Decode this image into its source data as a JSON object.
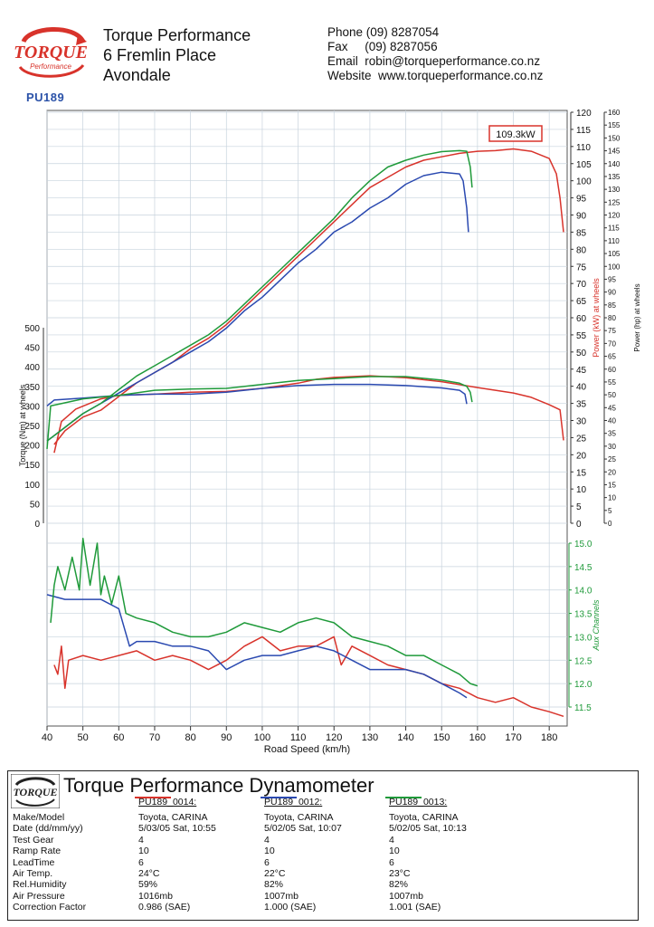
{
  "header": {
    "company": "Torque Performance",
    "address_line1": "6 Fremlin Place",
    "address_line2": "Avondale",
    "phone": "Phone (09) 8287054",
    "fax": "Fax     (09) 8287056",
    "email": "Email  robin@torqueperformance.co.nz",
    "website": "Website  www.torqueperformance.co.nz",
    "logo_text": "TORQUE",
    "logo_sub": "Performance",
    "vehicle_id": "PU189"
  },
  "colors": {
    "run_0014": "#d8332b",
    "run_0012": "#2a49b0",
    "run_0013": "#1f9a3a",
    "power_axis": "#d8332b",
    "aux_axis": "#1f9a3a",
    "grid": "#c7d3dd"
  },
  "chart_data": {
    "type": "line",
    "xlabel": "Road Speed (km/h)",
    "xlim": [
      40,
      185
    ],
    "x_ticks": [
      40,
      50,
      60,
      70,
      80,
      90,
      100,
      110,
      120,
      130,
      140,
      150,
      160,
      170,
      180
    ],
    "axes": {
      "torque": {
        "label": "Torque (Nm) at wheels",
        "range": [
          0,
          500
        ],
        "ticks": [
          0,
          50,
          100,
          150,
          200,
          250,
          300,
          350,
          400,
          450,
          500
        ]
      },
      "power_kw": {
        "label": "Power (kW) at wheels",
        "range": [
          0,
          120
        ],
        "ticks": [
          0,
          5,
          10,
          15,
          20,
          25,
          30,
          35,
          40,
          45,
          50,
          55,
          60,
          65,
          70,
          75,
          80,
          85,
          90,
          95,
          100,
          105,
          110,
          115,
          120
        ]
      },
      "power_hp": {
        "label": "Power (hp) at wheels",
        "range": [
          0,
          160
        ],
        "ticks": [
          0,
          5,
          10,
          15,
          20,
          25,
          30,
          35,
          40,
          45,
          50,
          55,
          60,
          65,
          70,
          75,
          80,
          85,
          90,
          95,
          100,
          105,
          110,
          115,
          120,
          125,
          130,
          135,
          140,
          145,
          150,
          155,
          160
        ]
      },
      "aux": {
        "label": "Aux Channels",
        "range": [
          11.5,
          15.0
        ],
        "ticks": [
          11.5,
          12.0,
          12.5,
          13.0,
          13.5,
          14.0,
          14.5,
          15.0
        ]
      }
    },
    "peak_annotation": "109.3kW",
    "series": [
      {
        "name": "PU189_0014",
        "color": "#d8332b",
        "power": [
          [
            42,
            23
          ],
          [
            45,
            27
          ],
          [
            50,
            31
          ],
          [
            55,
            33
          ],
          [
            60,
            37
          ],
          [
            65,
            41
          ],
          [
            70,
            44
          ],
          [
            75,
            47
          ],
          [
            80,
            51
          ],
          [
            85,
            54
          ],
          [
            90,
            58
          ],
          [
            95,
            63
          ],
          [
            100,
            68
          ],
          [
            105,
            73
          ],
          [
            110,
            78
          ],
          [
            115,
            83
          ],
          [
            120,
            88
          ],
          [
            125,
            93
          ],
          [
            130,
            98
          ],
          [
            135,
            101
          ],
          [
            140,
            104
          ],
          [
            145,
            106
          ],
          [
            150,
            107
          ],
          [
            155,
            108
          ],
          [
            160,
            108.6
          ],
          [
            165,
            108.8
          ],
          [
            170,
            109.3
          ],
          [
            175,
            108.6
          ],
          [
            180,
            106.5
          ],
          [
            182,
            102
          ],
          [
            183,
            95
          ],
          [
            184,
            85
          ]
        ],
        "torque": [
          [
            42,
            180
          ],
          [
            44,
            260
          ],
          [
            48,
            292
          ],
          [
            55,
            318
          ],
          [
            60,
            327
          ],
          [
            70,
            330
          ],
          [
            80,
            335
          ],
          [
            90,
            337
          ],
          [
            100,
            345
          ],
          [
            110,
            358
          ],
          [
            115,
            368
          ],
          [
            120,
            373
          ],
          [
            130,
            377
          ],
          [
            140,
            372
          ],
          [
            150,
            362
          ],
          [
            160,
            347
          ],
          [
            170,
            333
          ],
          [
            175,
            322
          ],
          [
            180,
            303
          ],
          [
            183,
            290
          ],
          [
            184,
            212
          ]
        ],
        "aux": [
          [
            42,
            12.4
          ],
          [
            43,
            12.2
          ],
          [
            44,
            12.8
          ],
          [
            45,
            11.9
          ],
          [
            46,
            12.5
          ],
          [
            50,
            12.6
          ],
          [
            55,
            12.5
          ],
          [
            60,
            12.6
          ],
          [
            65,
            12.7
          ],
          [
            70,
            12.5
          ],
          [
            75,
            12.6
          ],
          [
            80,
            12.5
          ],
          [
            85,
            12.3
          ],
          [
            90,
            12.5
          ],
          [
            95,
            12.8
          ],
          [
            100,
            13.0
          ],
          [
            105,
            12.7
          ],
          [
            110,
            12.8
          ],
          [
            115,
            12.8
          ],
          [
            120,
            13.0
          ],
          [
            122,
            12.4
          ],
          [
            125,
            12.8
          ],
          [
            130,
            12.6
          ],
          [
            135,
            12.4
          ],
          [
            140,
            12.3
          ],
          [
            145,
            12.2
          ],
          [
            150,
            12.0
          ],
          [
            155,
            11.9
          ],
          [
            160,
            11.7
          ],
          [
            165,
            11.6
          ],
          [
            170,
            11.7
          ],
          [
            175,
            11.5
          ],
          [
            180,
            11.4
          ],
          [
            184,
            11.3
          ]
        ]
      },
      {
        "name": "PU189_0012",
        "color": "#2a49b0",
        "power": [
          [
            40,
            24
          ],
          [
            45,
            28
          ],
          [
            50,
            32
          ],
          [
            55,
            35
          ],
          [
            60,
            38
          ],
          [
            65,
            41
          ],
          [
            70,
            44
          ],
          [
            75,
            47
          ],
          [
            80,
            50
          ],
          [
            85,
            53
          ],
          [
            90,
            57
          ],
          [
            95,
            62
          ],
          [
            100,
            66
          ],
          [
            105,
            71
          ],
          [
            110,
            76
          ],
          [
            115,
            80
          ],
          [
            120,
            85
          ],
          [
            125,
            88
          ],
          [
            130,
            92
          ],
          [
            135,
            95
          ],
          [
            140,
            99
          ],
          [
            145,
            101.5
          ],
          [
            150,
            102.5
          ],
          [
            155,
            102
          ],
          [
            156,
            100
          ],
          [
            157,
            92
          ],
          [
            157.5,
            85
          ]
        ],
        "torque": [
          [
            40,
            300
          ],
          [
            42,
            315
          ],
          [
            50,
            320
          ],
          [
            60,
            327
          ],
          [
            70,
            330
          ],
          [
            80,
            330
          ],
          [
            90,
            335
          ],
          [
            100,
            345
          ],
          [
            110,
            352
          ],
          [
            120,
            355
          ],
          [
            130,
            355
          ],
          [
            140,
            352
          ],
          [
            150,
            346
          ],
          [
            155,
            340
          ],
          [
            156.5,
            330
          ],
          [
            157,
            305
          ]
        ],
        "aux": [
          [
            40,
            13.9
          ],
          [
            45,
            13.8
          ],
          [
            50,
            13.8
          ],
          [
            55,
            13.8
          ],
          [
            60,
            13.6
          ],
          [
            63,
            12.8
          ],
          [
            65,
            12.9
          ],
          [
            70,
            12.9
          ],
          [
            75,
            12.8
          ],
          [
            80,
            12.8
          ],
          [
            85,
            12.7
          ],
          [
            90,
            12.3
          ],
          [
            95,
            12.5
          ],
          [
            100,
            12.6
          ],
          [
            105,
            12.6
          ],
          [
            110,
            12.7
          ],
          [
            115,
            12.8
          ],
          [
            120,
            12.7
          ],
          [
            125,
            12.5
          ],
          [
            130,
            12.3
          ],
          [
            135,
            12.3
          ],
          [
            140,
            12.3
          ],
          [
            145,
            12.2
          ],
          [
            150,
            12.0
          ],
          [
            155,
            11.8
          ],
          [
            157,
            11.7
          ]
        ]
      },
      {
        "name": "PU189_0013",
        "color": "#1f9a3a",
        "power": [
          [
            40,
            24
          ],
          [
            45,
            28
          ],
          [
            50,
            32
          ],
          [
            55,
            35
          ],
          [
            60,
            39
          ],
          [
            65,
            43
          ],
          [
            70,
            46
          ],
          [
            75,
            49
          ],
          [
            80,
            52
          ],
          [
            85,
            55
          ],
          [
            90,
            59
          ],
          [
            95,
            64
          ],
          [
            100,
            69
          ],
          [
            105,
            74
          ],
          [
            110,
            79
          ],
          [
            115,
            84
          ],
          [
            120,
            89
          ],
          [
            125,
            95
          ],
          [
            130,
            100
          ],
          [
            135,
            104
          ],
          [
            140,
            106
          ],
          [
            145,
            107.5
          ],
          [
            150,
            108.5
          ],
          [
            155,
            108.8
          ],
          [
            157,
            108.6
          ],
          [
            158,
            104
          ],
          [
            158.5,
            98
          ]
        ],
        "torque": [
          [
            40,
            190
          ],
          [
            41,
            300
          ],
          [
            50,
            318
          ],
          [
            60,
            327
          ],
          [
            70,
            340
          ],
          [
            80,
            343
          ],
          [
            90,
            345
          ],
          [
            100,
            355
          ],
          [
            110,
            365
          ],
          [
            120,
            370
          ],
          [
            130,
            375
          ],
          [
            140,
            375
          ],
          [
            150,
            366
          ],
          [
            155,
            358
          ],
          [
            157,
            350
          ],
          [
            158,
            335
          ],
          [
            158.5,
            310
          ]
        ],
        "aux": [
          [
            41,
            13.3
          ],
          [
            42,
            14.1
          ],
          [
            43,
            14.5
          ],
          [
            45,
            14.0
          ],
          [
            47,
            14.7
          ],
          [
            49,
            14.0
          ],
          [
            50,
            15.1
          ],
          [
            52,
            14.1
          ],
          [
            54,
            15.0
          ],
          [
            55,
            13.9
          ],
          [
            56,
            14.3
          ],
          [
            58,
            13.7
          ],
          [
            60,
            14.3
          ],
          [
            62,
            13.5
          ],
          [
            65,
            13.4
          ],
          [
            70,
            13.3
          ],
          [
            75,
            13.1
          ],
          [
            80,
            13.0
          ],
          [
            85,
            13.0
          ],
          [
            90,
            13.1
          ],
          [
            95,
            13.3
          ],
          [
            100,
            13.2
          ],
          [
            105,
            13.1
          ],
          [
            110,
            13.3
          ],
          [
            115,
            13.4
          ],
          [
            120,
            13.3
          ],
          [
            125,
            13.0
          ],
          [
            130,
            12.9
          ],
          [
            135,
            12.8
          ],
          [
            140,
            12.6
          ],
          [
            145,
            12.6
          ],
          [
            150,
            12.4
          ],
          [
            155,
            12.2
          ],
          [
            158,
            12.0
          ],
          [
            160,
            11.95
          ]
        ]
      }
    ]
  },
  "table": {
    "title": "Torque Performance Dynamometer",
    "logo_text": "TORQUE",
    "row_labels": [
      "Make/Model",
      "Date (dd/mm/yy)",
      "Test Gear",
      "Ramp Rate",
      "LeadTime",
      "Air Temp.",
      "Rel.Humidity",
      "Air Pressure",
      "Correction Factor"
    ],
    "runs": [
      {
        "name": "PU189_0014:",
        "values": [
          "Toyota, CARINA",
          "5/03/05 Sat, 10:55",
          "4",
          "10",
          "6",
          "24°C",
          "59%",
          "1016mb",
          "0.986 (SAE)"
        ]
      },
      {
        "name": "PU189_0012:",
        "values": [
          "Toyota, CARINA",
          "5/02/05 Sat, 10:07",
          "4",
          "10",
          "6",
          "22°C",
          "82%",
          "1007mb",
          "1.000 (SAE)"
        ]
      },
      {
        "name": "PU189_0013:",
        "values": [
          "Toyota, CARINA",
          "5/02/05 Sat, 10:13",
          "4",
          "10",
          "6",
          "23°C",
          "82%",
          "1007mb",
          "1.001 (SAE)"
        ]
      }
    ]
  }
}
